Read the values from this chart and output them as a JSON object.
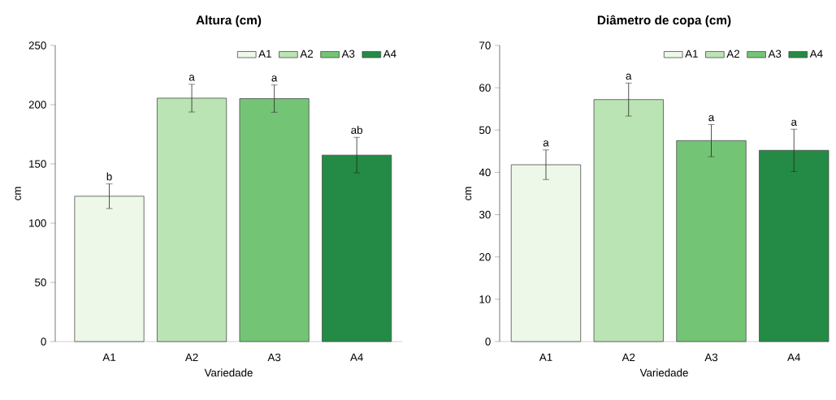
{
  "chart_data": [
    {
      "type": "bar",
      "title": "Altura (cm)",
      "xlabel": "Variedade",
      "ylabel": "cm",
      "categories": [
        "A1",
        "A2",
        "A3",
        "A4"
      ],
      "series": [
        {
          "name": "A1",
          "color": "#edf8e9",
          "values": [
            122.7,
            null,
            null,
            null
          ],
          "errors": [
            10.4,
            null,
            null,
            null
          ]
        },
        {
          "name": "A2",
          "color": "#bae4b3",
          "values": [
            null,
            205.5,
            null,
            null
          ],
          "errors": [
            null,
            11.7,
            null,
            null
          ]
        },
        {
          "name": "A3",
          "color": "#74c476",
          "values": [
            null,
            null,
            205.1,
            null
          ],
          "errors": [
            null,
            null,
            11.5,
            null
          ]
        },
        {
          "name": "A4",
          "color": "#238b45",
          "values": [
            null,
            null,
            null,
            157.4
          ],
          "errors": [
            null,
            null,
            null,
            15.0
          ]
        }
      ],
      "ylim": [
        0,
        250
      ],
      "yticks": [
        0,
        50,
        100,
        150,
        200,
        250
      ],
      "legend": "top right",
      "annotations": [
        {
          "text": "b",
          "x": "A1",
          "y": 133.1
        },
        {
          "text": "a",
          "x": "A2",
          "y": 217.2
        },
        {
          "text": "a",
          "x": "A3",
          "y": 216.6
        },
        {
          "text": "ab",
          "x": "A4",
          "y": 172.4
        }
      ]
    },
    {
      "type": "bar",
      "title": "Diâmetro de copa (cm)",
      "xlabel": "Variedade",
      "ylabel": "cm",
      "categories": [
        "A1",
        "A2",
        "A3",
        "A4"
      ],
      "series": [
        {
          "name": "A1",
          "color": "#edf8e9",
          "values": [
            41.8,
            null,
            null,
            null
          ],
          "errors": [
            3.5,
            null,
            null,
            null
          ]
        },
        {
          "name": "A2",
          "color": "#bae4b3",
          "values": [
            null,
            57.2,
            null,
            null
          ],
          "errors": [
            null,
            3.9,
            null,
            null
          ]
        },
        {
          "name": "A3",
          "color": "#74c476",
          "values": [
            null,
            null,
            47.5,
            null
          ],
          "errors": [
            null,
            null,
            3.8,
            null
          ]
        },
        {
          "name": "A4",
          "color": "#238b45",
          "values": [
            null,
            null,
            null,
            45.2
          ],
          "errors": [
            null,
            null,
            null,
            5.0
          ]
        }
      ],
      "ylim": [
        0,
        70
      ],
      "yticks": [
        0,
        10,
        20,
        30,
        40,
        50,
        60,
        70
      ],
      "legend": "top right",
      "annotations": [
        {
          "text": "a",
          "x": "A1",
          "y": 45.3
        },
        {
          "text": "a",
          "x": "A2",
          "y": 61.1
        },
        {
          "text": "a",
          "x": "A3",
          "y": 51.3
        },
        {
          "text": "a",
          "x": "A4",
          "y": 50.2
        }
      ]
    }
  ]
}
